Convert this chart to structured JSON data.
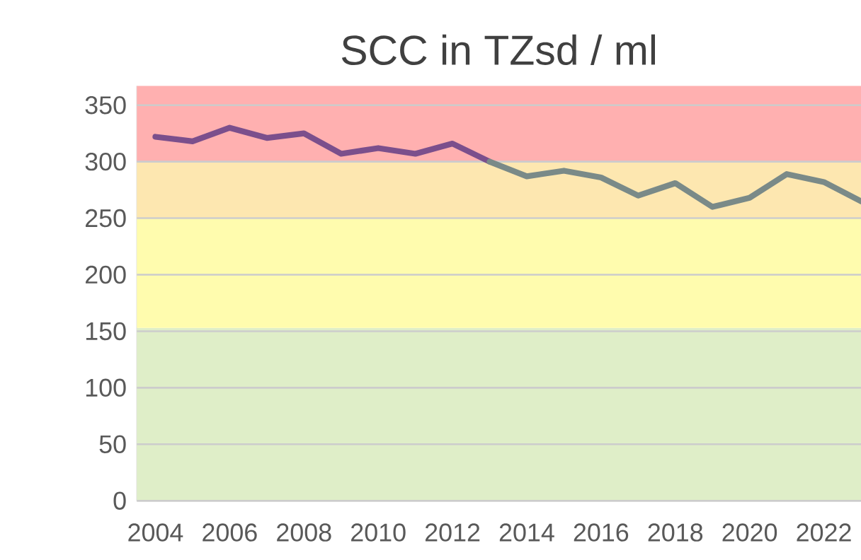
{
  "chart_data": {
    "type": "line",
    "title": "SCC in TZsd / ml",
    "series": [
      {
        "color": "#7b4f8c",
        "x": [
          2004,
          2005,
          2006,
          2007,
          2008,
          2009,
          2010,
          2011,
          2012,
          2013
        ],
        "values": [
          322,
          318,
          330,
          321,
          325,
          307,
          312,
          307,
          316,
          300
        ]
      },
      {
        "color": "#7a8a88",
        "x": [
          2013,
          2014,
          2015,
          2016,
          2017,
          2018,
          2019,
          2020,
          2021,
          2022,
          2023
        ],
        "values": [
          300,
          287,
          292,
          286,
          270,
          281,
          260,
          268,
          289,
          282,
          265
        ]
      }
    ],
    "xlim": [
      2003.5,
      2023
    ],
    "ylim": [
      0,
      367
    ],
    "xticks": [
      2004,
      2006,
      2008,
      2010,
      2012,
      2014,
      2016,
      2018,
      2020,
      2022
    ],
    "yticks": [
      0,
      50,
      100,
      150,
      200,
      250,
      300,
      350
    ],
    "grid": "y",
    "marker": "none",
    "line_style": "solid",
    "bands": [
      {
        "axis": "y",
        "from": 0,
        "to": 153,
        "color": "#dfeec8"
      },
      {
        "axis": "y",
        "from": 153,
        "to": 250,
        "color": "#fffcae"
      },
      {
        "axis": "y",
        "from": 250,
        "to": 300,
        "color": "#fde7b0"
      },
      {
        "axis": "y",
        "from": 300,
        "to": 367,
        "color": "#ffb0b0"
      }
    ]
  }
}
